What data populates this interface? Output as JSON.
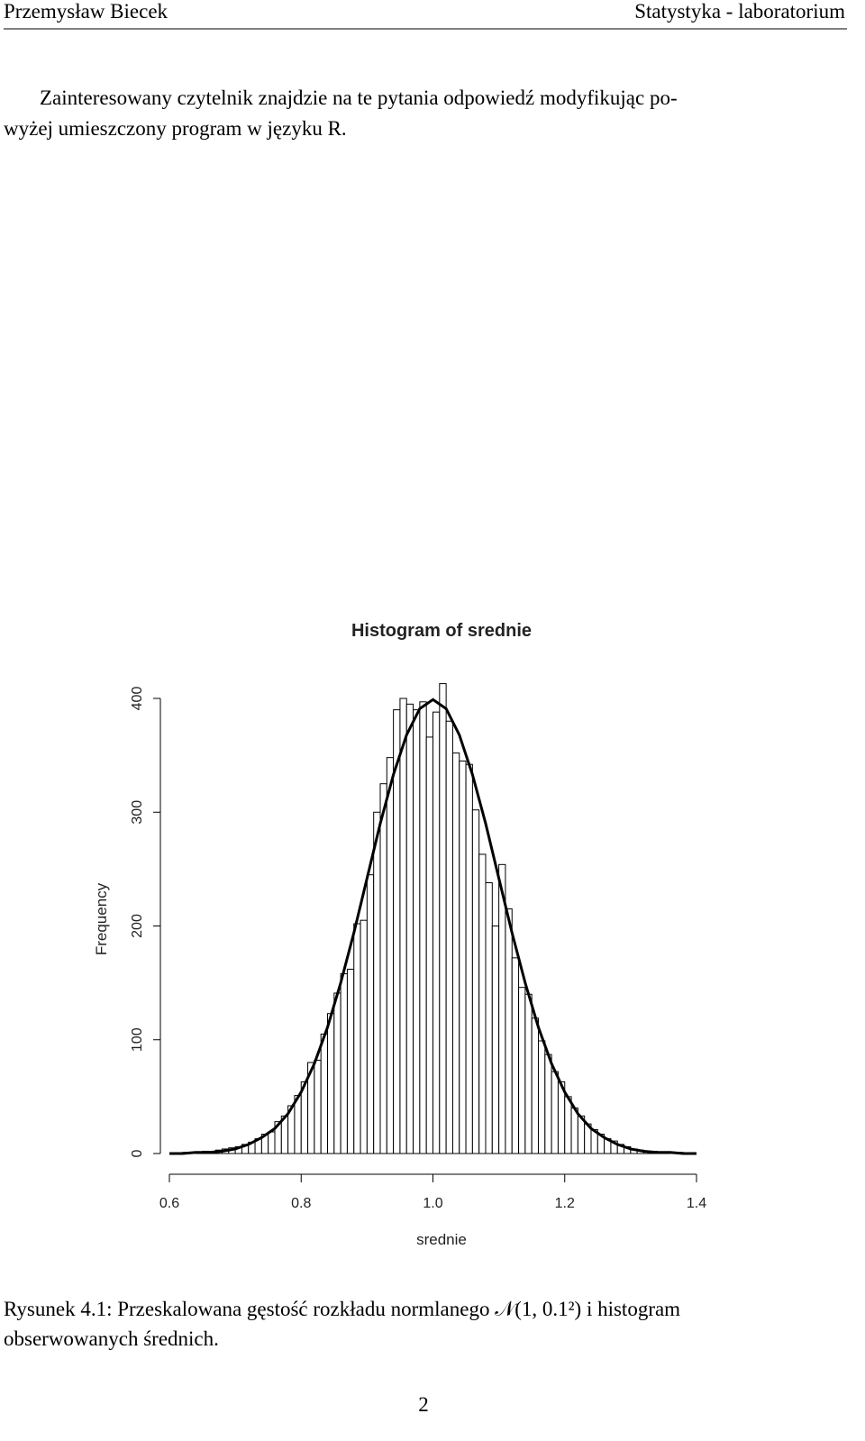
{
  "header": {
    "author": "Przemysław Biecek",
    "title": "Statystyka - laboratorium"
  },
  "paragraph": [
    "Zainteresowany czytelnik znajdzie na te pytania odpowiedź modyfikując po-",
    "wyżej umieszczony program w języku R."
  ],
  "chart_data": {
    "type": "histogram",
    "title": "Histogram of srednie",
    "x_label": "srednie",
    "y_label": "Frequency",
    "bins": [
      0.6,
      0.61,
      0.62,
      0.63,
      0.64,
      0.65,
      0.66,
      0.67,
      0.68,
      0.69,
      0.7,
      0.71,
      0.72,
      0.73,
      0.74,
      0.75,
      0.76,
      0.77,
      0.78,
      0.79,
      0.8,
      0.81,
      0.82,
      0.83,
      0.84,
      0.85,
      0.86,
      0.87,
      0.88,
      0.89,
      0.9,
      0.91,
      0.92,
      0.93,
      0.94,
      0.95,
      0.96,
      0.97,
      0.98,
      0.99,
      1,
      1.01,
      1.02,
      1.03,
      1.04,
      1.05,
      1.06,
      1.07,
      1.08,
      1.09,
      1.1,
      1.11,
      1.12,
      1.13,
      1.14,
      1.15,
      1.16,
      1.17,
      1.18,
      1.19,
      1.2,
      1.21,
      1.22,
      1.23,
      1.24,
      1.25,
      1.26,
      1.27,
      1.28,
      1.29,
      1.3,
      1.31,
      1.32,
      1.33,
      1.34,
      1.35,
      1.36,
      1.37,
      1.38,
      1.39,
      1.4
    ],
    "values": [
      0,
      0,
      1,
      0,
      1,
      2,
      1,
      3,
      4,
      5,
      6,
      8,
      10,
      13,
      17,
      19,
      28,
      33,
      42,
      51,
      63,
      80,
      82,
      105,
      123,
      141,
      158,
      162,
      202,
      205,
      245,
      300,
      325,
      348,
      390,
      400,
      395,
      390,
      397,
      366,
      388,
      413,
      380,
      352,
      345,
      342,
      302,
      263,
      238,
      200,
      254,
      215,
      172,
      146,
      140,
      119,
      99,
      87,
      72,
      63,
      50,
      40,
      33,
      26,
      21,
      17,
      13,
      11,
      8,
      6,
      4,
      3,
      2,
      2,
      1,
      1,
      0,
      1,
      0,
      0
    ],
    "density": {
      "x": [
        0.6,
        0.62,
        0.64,
        0.66,
        0.68,
        0.7,
        0.72,
        0.74,
        0.76,
        0.78,
        0.8,
        0.82,
        0.84,
        0.86,
        0.88,
        0.9,
        0.92,
        0.94,
        0.96,
        0.98,
        1,
        1.02,
        1.04,
        1.06,
        1.08,
        1.1,
        1.12,
        1.14,
        1.16,
        1.18,
        1.2,
        1.22,
        1.24,
        1.26,
        1.28,
        1.3,
        1.32,
        1.34,
        1.36,
        1.38,
        1.4
      ],
      "y": [
        0,
        0,
        1,
        1,
        2,
        4,
        8,
        14,
        22,
        35,
        54,
        79,
        111,
        150,
        194,
        242,
        290,
        333,
        368,
        391,
        399,
        391,
        368,
        333,
        290,
        242,
        194,
        150,
        111,
        79,
        54,
        35,
        22,
        14,
        8,
        4,
        2,
        1,
        1,
        0,
        0
      ]
    },
    "xlim": [
      0.6,
      1.4
    ],
    "ylim": [
      0,
      400
    ],
    "xticks": [
      0.6,
      0.8,
      {
        "value": 1,
        "label": "1.0"
      },
      1.2,
      1.4
    ],
    "yticks": [
      0,
      100,
      200,
      300,
      400
    ],
    "bar_color": "#ffffff",
    "line_color": "#000000"
  },
  "caption": [
    "Rysunek 4.1: Przeskalowana gęstość rozkładu normlanego 𝒩(1, 0.1²) i histogram",
    "obserwowanych średnich."
  ],
  "page_number": "2"
}
